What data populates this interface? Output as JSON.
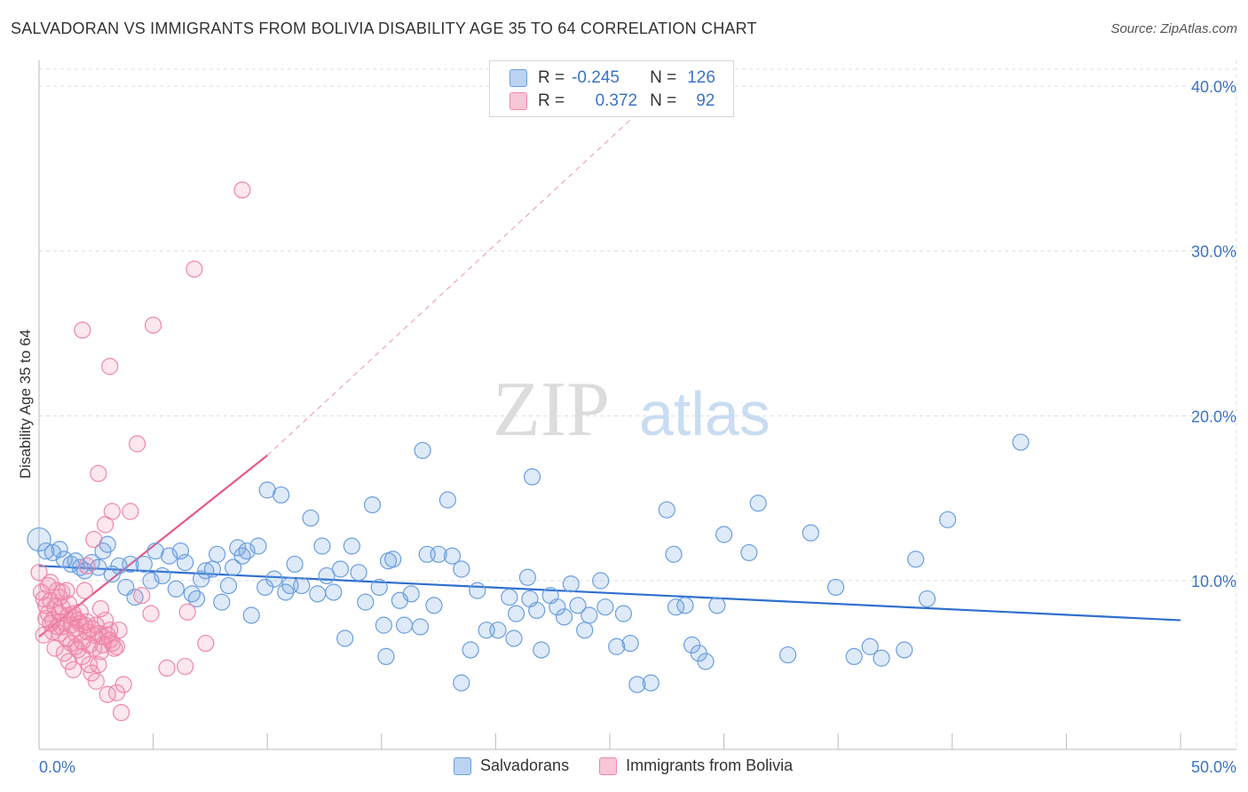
{
  "header": {
    "title": "SALVADORAN VS IMMIGRANTS FROM BOLIVIA DISABILITY AGE 35 TO 64 CORRELATION CHART",
    "source": "Source: ZipAtlas.com"
  },
  "watermark": {
    "zip": "ZIP",
    "atlas": "atlas"
  },
  "legend": {
    "rows": [
      {
        "r_label": "R =",
        "r_value": "-0.245",
        "n_label": "N =",
        "n_value": "126",
        "color": "#6b9ee0"
      },
      {
        "r_label": "R =",
        "r_value": "0.372",
        "n_label": "N =",
        "n_value": "92",
        "color": "#ef87a8"
      }
    ]
  },
  "bottom_legend": [
    "Salvadorans",
    "Immigrants from Bolivia"
  ],
  "chart_data": {
    "type": "scatter",
    "title": "SALVADORAN VS IMMIGRANTS FROM BOLIVIA DISABILITY AGE 35 TO 64 CORRELATION CHART",
    "ylabel": "Disability Age 35 to 64",
    "xlabel": "",
    "xlim": [
      0,
      50
    ],
    "ylim": [
      0,
      41
    ],
    "x_tick_labels": [
      "0.0%",
      "50.0%"
    ],
    "y_ticks": [
      10,
      20,
      30,
      40
    ],
    "y_tick_labels": [
      "10.0%",
      "20.0%",
      "30.0%",
      "40.0%"
    ],
    "grid": true,
    "legend_position": "top-center",
    "series": [
      {
        "name": "Salvadorans",
        "color": "#6b9ee0",
        "trend": {
          "x": [
            0,
            50
          ],
          "y": [
            10.9,
            7.6
          ],
          "style": "solid",
          "color": "#2f6fcd"
        },
        "points": [
          [
            0,
            12.5
          ],
          [
            0.3,
            11.8
          ],
          [
            0.6,
            11.7
          ],
          [
            0.9,
            11.9
          ],
          [
            1.1,
            11.3
          ],
          [
            1.4,
            11.0
          ],
          [
            1.6,
            11.2
          ],
          [
            1.8,
            10.8
          ],
          [
            2.0,
            10.6
          ],
          [
            2.3,
            11.1
          ],
          [
            2.6,
            10.8
          ],
          [
            2.8,
            11.8
          ],
          [
            3.0,
            12.2
          ],
          [
            3.2,
            10.4
          ],
          [
            3.5,
            10.9
          ],
          [
            3.8,
            9.6
          ],
          [
            4.0,
            11.0
          ],
          [
            4.2,
            9.0
          ],
          [
            4.6,
            11.0
          ],
          [
            4.9,
            10.0
          ],
          [
            5.1,
            11.8
          ],
          [
            5.4,
            10.3
          ],
          [
            5.7,
            11.5
          ],
          [
            6.0,
            9.5
          ],
          [
            6.2,
            11.8
          ],
          [
            6.4,
            11.1
          ],
          [
            6.7,
            9.2
          ],
          [
            6.9,
            8.9
          ],
          [
            7.1,
            10.1
          ],
          [
            7.3,
            10.6
          ],
          [
            7.6,
            10.7
          ],
          [
            7.8,
            11.6
          ],
          [
            8.0,
            8.7
          ],
          [
            8.3,
            9.7
          ],
          [
            8.5,
            10.8
          ],
          [
            8.7,
            12.0
          ],
          [
            8.9,
            11.5
          ],
          [
            9.1,
            11.8
          ],
          [
            9.3,
            7.9
          ],
          [
            9.6,
            12.1
          ],
          [
            9.9,
            9.6
          ],
          [
            10.0,
            15.5
          ],
          [
            10.3,
            10.1
          ],
          [
            10.6,
            15.2
          ],
          [
            10.8,
            9.3
          ],
          [
            11.0,
            9.7
          ],
          [
            11.2,
            11.0
          ],
          [
            11.5,
            9.7
          ],
          [
            11.9,
            13.8
          ],
          [
            12.2,
            9.2
          ],
          [
            12.4,
            12.1
          ],
          [
            12.6,
            10.3
          ],
          [
            12.9,
            9.3
          ],
          [
            13.2,
            10.7
          ],
          [
            13.4,
            6.5
          ],
          [
            13.7,
            12.1
          ],
          [
            14.0,
            10.5
          ],
          [
            14.3,
            8.7
          ],
          [
            14.6,
            14.6
          ],
          [
            14.9,
            9.6
          ],
          [
            15.1,
            7.3
          ],
          [
            15.3,
            11.2
          ],
          [
            15.5,
            11.3
          ],
          [
            15.8,
            8.8
          ],
          [
            16.0,
            7.3
          ],
          [
            16.3,
            9.2
          ],
          [
            16.7,
            7.2
          ],
          [
            17.0,
            11.6
          ],
          [
            17.3,
            8.5
          ],
          [
            17.5,
            11.6
          ],
          [
            17.9,
            14.9
          ],
          [
            18.1,
            11.5
          ],
          [
            18.5,
            10.7
          ],
          [
            18.5,
            3.8
          ],
          [
            18.9,
            5.8
          ],
          [
            19.2,
            9.4
          ],
          [
            19.6,
            7.0
          ],
          [
            20.1,
            7.0
          ],
          [
            20.6,
            9.0
          ],
          [
            20.8,
            6.5
          ],
          [
            20.9,
            8.0
          ],
          [
            21.4,
            10.2
          ],
          [
            21.5,
            8.9
          ],
          [
            21.6,
            16.3
          ],
          [
            21.8,
            8.2
          ],
          [
            22.0,
            5.8
          ],
          [
            22.4,
            9.1
          ],
          [
            22.7,
            8.4
          ],
          [
            23.0,
            7.8
          ],
          [
            23.3,
            9.8
          ],
          [
            23.6,
            8.5
          ],
          [
            23.9,
            7.0
          ],
          [
            24.1,
            7.9
          ],
          [
            24.6,
            10.0
          ],
          [
            24.8,
            8.4
          ],
          [
            25.3,
            6.0
          ],
          [
            25.6,
            8.0
          ],
          [
            25.9,
            6.2
          ],
          [
            26.2,
            3.7
          ],
          [
            26.8,
            3.8
          ],
          [
            27.5,
            14.3
          ],
          [
            27.8,
            11.6
          ],
          [
            27.9,
            8.4
          ],
          [
            28.3,
            8.5
          ],
          [
            28.6,
            6.1
          ],
          [
            28.9,
            5.6
          ],
          [
            29.2,
            5.1
          ],
          [
            29.7,
            8.5
          ],
          [
            30.0,
            12.8
          ],
          [
            31.1,
            11.7
          ],
          [
            31.5,
            14.7
          ],
          [
            32.8,
            5.5
          ],
          [
            33.8,
            12.9
          ],
          [
            34.9,
            9.6
          ],
          [
            35.7,
            5.4
          ],
          [
            36.4,
            6.0
          ],
          [
            36.9,
            5.3
          ],
          [
            37.9,
            5.8
          ],
          [
            38.4,
            11.3
          ],
          [
            38.9,
            8.9
          ],
          [
            39.8,
            13.7
          ],
          [
            43.0,
            18.4
          ],
          [
            15.2,
            5.4
          ],
          [
            16.8,
            17.9
          ]
        ]
      },
      {
        "name": "Immigrants from Bolivia",
        "color": "#ef87a8",
        "trend": {
          "x": [
            0,
            10.0
          ],
          "y": [
            6.6,
            17.6
          ],
          "style": "solid",
          "dashed_extension_to": [
            27.5,
            40.0
          ],
          "color": "#e8588a"
        },
        "points": [
          [
            0,
            10.5
          ],
          [
            0.1,
            9.3
          ],
          [
            0.2,
            8.9
          ],
          [
            0.3,
            8.5
          ],
          [
            0.3,
            7.7
          ],
          [
            0.4,
            9.7
          ],
          [
            0.4,
            8.0
          ],
          [
            0.5,
            7.4
          ],
          [
            0.5,
            9.9
          ],
          [
            0.6,
            6.9
          ],
          [
            0.6,
            7.6
          ],
          [
            0.7,
            8.4
          ],
          [
            0.8,
            7.2
          ],
          [
            0.8,
            9.4
          ],
          [
            0.9,
            8.0
          ],
          [
            0.9,
            6.8
          ],
          [
            1.0,
            8.4
          ],
          [
            1.0,
            7.2
          ],
          [
            1.1,
            5.6
          ],
          [
            1.1,
            7.5
          ],
          [
            1.2,
            9.4
          ],
          [
            1.2,
            6.5
          ],
          [
            1.3,
            7.9
          ],
          [
            1.3,
            5.1
          ],
          [
            1.4,
            7.3
          ],
          [
            1.4,
            6.2
          ],
          [
            1.5,
            8.0
          ],
          [
            1.5,
            4.6
          ],
          [
            1.6,
            7.1
          ],
          [
            1.6,
            6.8
          ],
          [
            1.7,
            7.6
          ],
          [
            1.7,
            5.8
          ],
          [
            1.8,
            8.1
          ],
          [
            1.9,
            6.3
          ],
          [
            1.9,
            25.2
          ],
          [
            2.0,
            7.3
          ],
          [
            2.0,
            9.4
          ],
          [
            2.1,
            6.9
          ],
          [
            2.1,
            10.9
          ],
          [
            2.2,
            6.1
          ],
          [
            2.2,
            4.9
          ],
          [
            2.3,
            7.1
          ],
          [
            2.3,
            4.4
          ],
          [
            2.4,
            5.9
          ],
          [
            2.4,
            12.5
          ],
          [
            2.5,
            7.3
          ],
          [
            2.5,
            3.9
          ],
          [
            2.6,
            6.8
          ],
          [
            2.6,
            16.5
          ],
          [
            2.7,
            5.7
          ],
          [
            2.7,
            8.3
          ],
          [
            2.8,
            6.6
          ],
          [
            2.8,
            6.1
          ],
          [
            2.9,
            7.6
          ],
          [
            2.9,
            13.4
          ],
          [
            3.0,
            6.7
          ],
          [
            3.0,
            3.1
          ],
          [
            3.1,
            6.4
          ],
          [
            3.1,
            23.0
          ],
          [
            3.2,
            6.2
          ],
          [
            3.2,
            14.2
          ],
          [
            3.3,
            5.9
          ],
          [
            3.4,
            3.2
          ],
          [
            3.5,
            7.0
          ],
          [
            3.6,
            2.0
          ],
          [
            3.7,
            3.7
          ],
          [
            4.0,
            14.2
          ],
          [
            4.3,
            18.3
          ],
          [
            4.5,
            9.1
          ],
          [
            4.9,
            8.0
          ],
          [
            5.0,
            25.5
          ],
          [
            5.6,
            4.7
          ],
          [
            6.4,
            4.8
          ],
          [
            6.5,
            8.1
          ],
          [
            6.8,
            28.9
          ],
          [
            7.3,
            6.2
          ],
          [
            8.9,
            33.7
          ],
          [
            1.0,
            9.3
          ],
          [
            1.3,
            8.6
          ],
          [
            1.8,
            7.4
          ],
          [
            0.2,
            6.7
          ],
          [
            0.7,
            5.9
          ],
          [
            1.6,
            6.0
          ],
          [
            2.1,
            7.5
          ],
          [
            2.6,
            4.9
          ],
          [
            3.4,
            6.0
          ],
          [
            0.5,
            8.8
          ],
          [
            1.9,
            5.4
          ],
          [
            2.4,
            6.7
          ],
          [
            0.9,
            9.0
          ],
          [
            1.5,
            7.8
          ],
          [
            3.1,
            7.0
          ]
        ]
      }
    ]
  }
}
